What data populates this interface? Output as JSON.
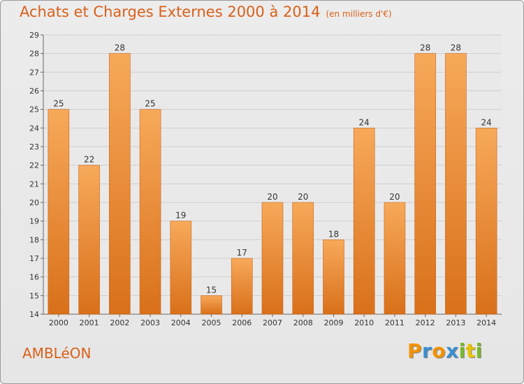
{
  "title": "Achats et Charges Externes 2000 à 2014",
  "unit": "(en milliers d'€)",
  "commune": "AMBLéON",
  "logo": {
    "letters": [
      "P",
      "r",
      "o",
      "x",
      "i",
      "t",
      "i"
    ],
    "colors": [
      "#f39200",
      "#3a8fd1",
      "#f39200",
      "#3a8fd1",
      "#78b829",
      "#e8c300",
      "#78b829"
    ]
  },
  "colors": {
    "accent": "#d9601a",
    "bar_light": "#f7a95a",
    "bar_dark": "#d9701a",
    "grid": "#cfcfcf"
  },
  "chart_data": {
    "type": "bar",
    "title": "Achats et Charges Externes 2000 à 2014",
    "categories": [
      "2000",
      "2001",
      "2002",
      "2003",
      "2004",
      "2005",
      "2006",
      "2007",
      "2008",
      "2009",
      "2010",
      "2011",
      "2012",
      "2013",
      "2014"
    ],
    "values": [
      25,
      22,
      28,
      25,
      19,
      15,
      17,
      20,
      20,
      18,
      24,
      20,
      28,
      28,
      24
    ],
    "ylim": [
      14,
      29
    ],
    "yticks": [
      14,
      15,
      16,
      17,
      18,
      19,
      20,
      21,
      22,
      23,
      24,
      25,
      26,
      27,
      28,
      29
    ],
    "grid": true,
    "xlabel": "",
    "ylabel": ""
  }
}
